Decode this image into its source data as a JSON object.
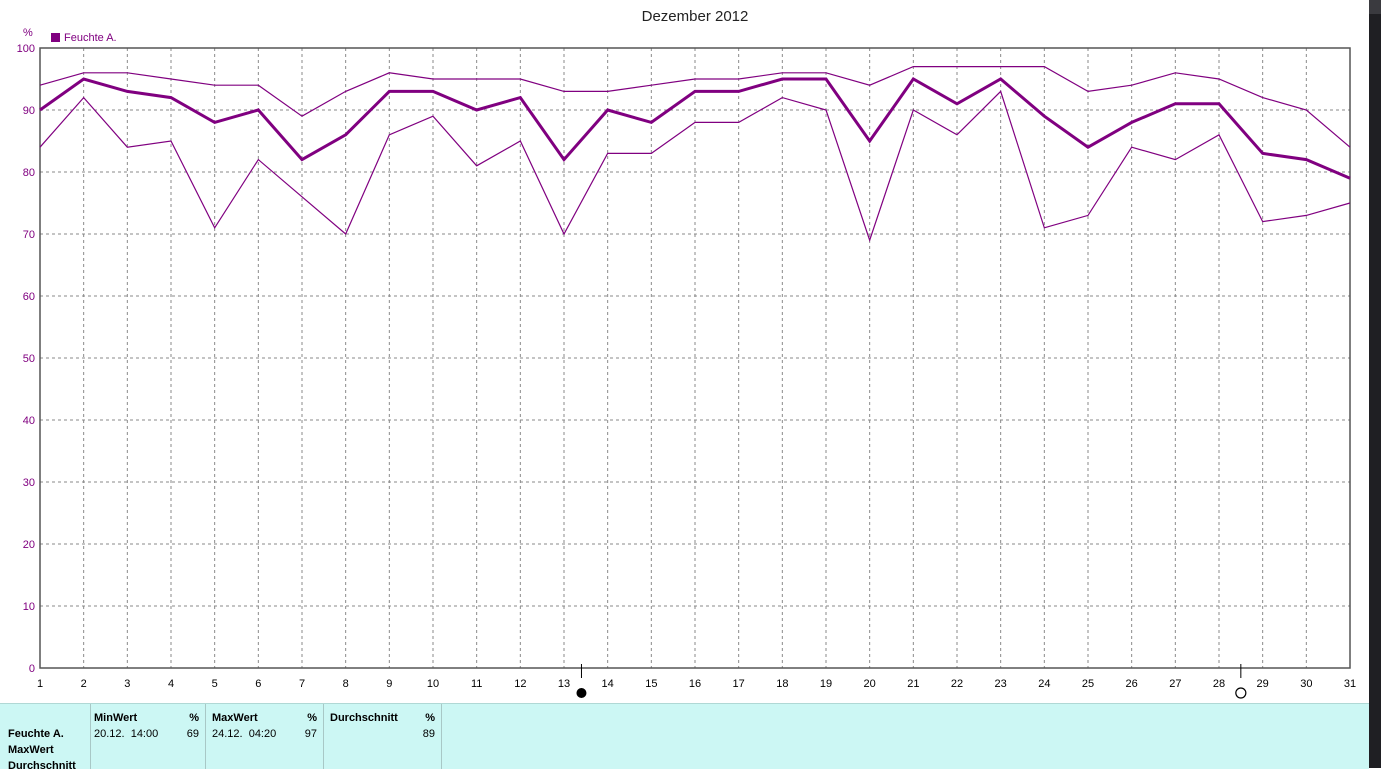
{
  "chart_data": {
    "type": "line",
    "title": "Dezember 2012",
    "ylabel": "%",
    "ylim": [
      0,
      100
    ],
    "yticks": [
      0,
      10,
      20,
      30,
      40,
      50,
      60,
      70,
      80,
      90,
      100
    ],
    "x": [
      1,
      2,
      3,
      4,
      5,
      6,
      7,
      8,
      9,
      10,
      11,
      12,
      13,
      14,
      15,
      16,
      17,
      18,
      19,
      20,
      21,
      22,
      23,
      24,
      25,
      26,
      27,
      28,
      29,
      30,
      31
    ],
    "grid": true,
    "legend": {
      "position": "top-left",
      "label": "Feuchte A.",
      "color": "#800080"
    },
    "series": [
      {
        "role": "max",
        "stroke": 1.2,
        "values": [
          94,
          96,
          96,
          95,
          94,
          94,
          89,
          93,
          96,
          95,
          95,
          95,
          93,
          93,
          94,
          95,
          95,
          96,
          96,
          94,
          97,
          97,
          97,
          97,
          93,
          94,
          96,
          95,
          92,
          90,
          84
        ]
      },
      {
        "role": "avg",
        "stroke": 3,
        "values": [
          90,
          95,
          93,
          92,
          88,
          90,
          82,
          86,
          93,
          93,
          90,
          92,
          82,
          90,
          88,
          93,
          93,
          95,
          95,
          85,
          95,
          91,
          95,
          89,
          84,
          88,
          91,
          91,
          83,
          82,
          79
        ]
      },
      {
        "role": "min",
        "stroke": 1.2,
        "values": [
          84,
          92,
          84,
          85,
          71,
          82,
          76,
          70,
          86,
          89,
          81,
          85,
          70,
          83,
          83,
          88,
          88,
          92,
          90,
          69,
          90,
          86,
          93,
          71,
          73,
          84,
          82,
          86,
          72,
          73,
          75
        ]
      }
    ],
    "markers": [
      {
        "x": 13.4,
        "symbol": "full-moon-icon"
      },
      {
        "x": 28.5,
        "symbol": "new-moon-icon"
      }
    ]
  },
  "colors": {
    "line": "#800080",
    "axis_text": "#800080",
    "grid": "#8a8a8a",
    "panel": "#ccf7f4"
  },
  "stats": {
    "row_labels": [
      "Feuchte A.",
      "MaxWert",
      "Durchschnitt"
    ],
    "min": {
      "label": "MinWert",
      "unit": "%",
      "time": "20.12.  14:00",
      "value": "69"
    },
    "max": {
      "label": "MaxWert",
      "unit": "%",
      "time": "24.12.  04:20",
      "value": "97"
    },
    "avg": {
      "label": "Durchschnitt",
      "unit": "%",
      "value": "89"
    }
  }
}
